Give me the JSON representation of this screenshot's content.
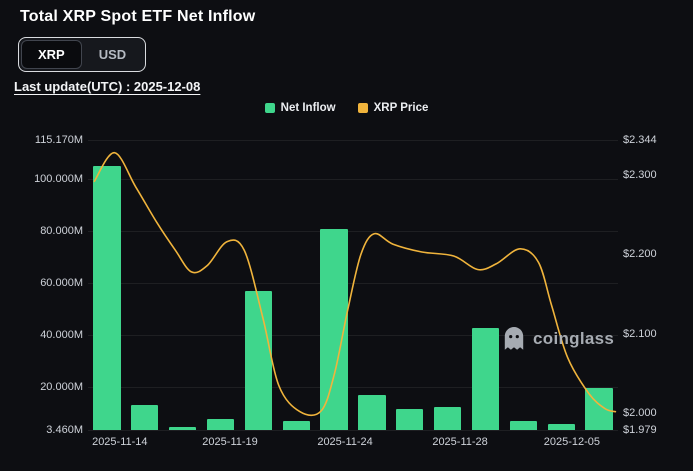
{
  "header": {
    "title": "Total XRP Spot ETF Net Inflow",
    "last_update": "Last update(UTC) : 2025-12-08"
  },
  "toggle": {
    "options": [
      {
        "label": "XRP",
        "active": true
      },
      {
        "label": "USD",
        "active": false
      }
    ]
  },
  "legend": {
    "items": [
      {
        "label": "Net Inflow",
        "color": "#3fd68c"
      },
      {
        "label": "XRP Price",
        "color": "#f0b43c"
      }
    ]
  },
  "watermark": {
    "label": "coinglass"
  },
  "chart_data": {
    "type": "bar+line",
    "title": "Total XRP Spot ETF Net Inflow",
    "grid": true,
    "legend_position": "top-center",
    "series": [
      {
        "name": "Net Inflow",
        "type": "bar",
        "unit": "M (XRP)",
        "color": "#3fd68c",
        "values": [
          105.3,
          13.1,
          4.6,
          7.7,
          56.9,
          6.9,
          80.9,
          16.9,
          11.5,
          12.3,
          42.6,
          6.9,
          5.8,
          19.6
        ]
      },
      {
        "name": "XRP Price",
        "type": "line",
        "unit": "USD",
        "color": "#f0b43c",
        "points": [
          [
            0.012,
            2.292
          ],
          [
            0.05,
            2.328
          ],
          [
            0.09,
            2.285
          ],
          [
            0.13,
            2.24
          ],
          [
            0.165,
            2.205
          ],
          [
            0.195,
            2.178
          ],
          [
            0.225,
            2.186
          ],
          [
            0.262,
            2.216
          ],
          [
            0.295,
            2.205
          ],
          [
            0.33,
            2.12
          ],
          [
            0.36,
            2.035
          ],
          [
            0.4,
            2.002
          ],
          [
            0.44,
            2.003
          ],
          [
            0.465,
            2.05
          ],
          [
            0.49,
            2.13
          ],
          [
            0.515,
            2.2
          ],
          [
            0.54,
            2.226
          ],
          [
            0.575,
            2.213
          ],
          [
            0.63,
            2.203
          ],
          [
            0.69,
            2.198
          ],
          [
            0.735,
            2.181
          ],
          [
            0.77,
            2.188
          ],
          [
            0.815,
            2.207
          ],
          [
            0.85,
            2.19
          ],
          [
            0.875,
            2.135
          ],
          [
            0.905,
            2.07
          ],
          [
            0.945,
            2.025
          ],
          [
            0.975,
            2.006
          ],
          [
            0.995,
            2.002
          ]
        ]
      }
    ],
    "left_axis": {
      "min": 3.46,
      "max": 115.17,
      "ticks": [
        {
          "label": "115.170M",
          "value": 115.17
        },
        {
          "label": "100.000M",
          "value": 100.0
        },
        {
          "label": "80.000M",
          "value": 80.0
        },
        {
          "label": "60.000M",
          "value": 60.0
        },
        {
          "label": "40.000M",
          "value": 40.0
        },
        {
          "label": "20.000M",
          "value": 20.0
        },
        {
          "label": "3.460M",
          "value": 3.46
        }
      ]
    },
    "right_axis": {
      "min": 1.979,
      "max": 2.344,
      "ticks": [
        {
          "label": "$2.344",
          "value": 2.344
        },
        {
          "label": "$2.300",
          "value": 2.3
        },
        {
          "label": "$2.200",
          "value": 2.2
        },
        {
          "label": "$2.100",
          "value": 2.1
        },
        {
          "label": "$2.000",
          "value": 2.0
        },
        {
          "label": "$1.979",
          "value": 1.979
        }
      ]
    },
    "x_axis": {
      "ticks": [
        {
          "label": "2025-11-14",
          "pos": 0.06
        },
        {
          "label": "2025-11-19",
          "pos": 0.268
        },
        {
          "label": "2025-11-24",
          "pos": 0.485
        },
        {
          "label": "2025-11-28",
          "pos": 0.702
        },
        {
          "label": "2025-12-05",
          "pos": 0.913
        }
      ]
    }
  }
}
